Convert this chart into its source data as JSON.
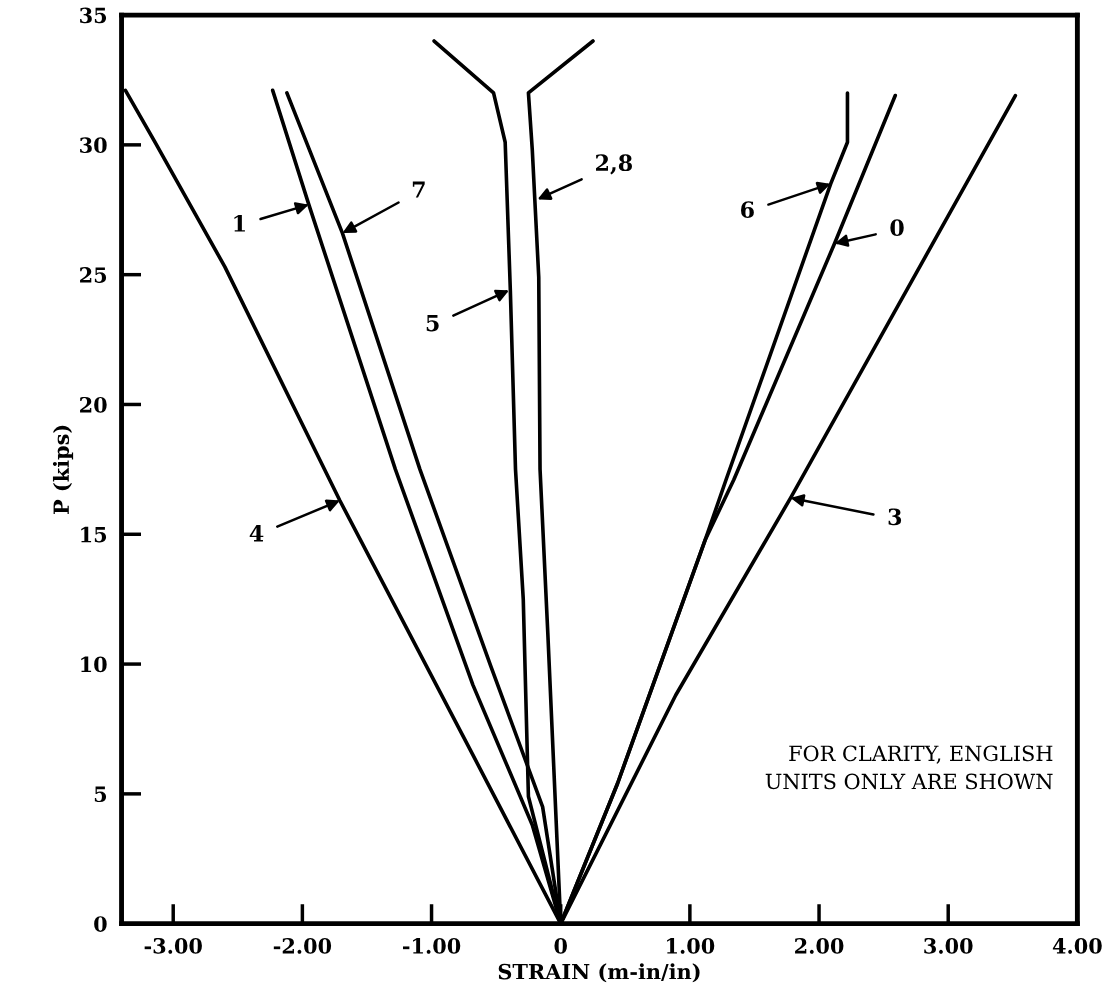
{
  "chart_data": {
    "type": "line",
    "xlabel": "STRAIN (m-in/in)",
    "ylabel": "P (kips)",
    "xlim": [
      -3.4,
      4.0
    ],
    "ylim": [
      0,
      35
    ],
    "xticks": [
      {
        "value": -3,
        "label": "-3.00"
      },
      {
        "value": -2,
        "label": "-2.00"
      },
      {
        "value": -1,
        "label": "-1.00"
      },
      0,
      {
        "value": 1,
        "label": "1.00"
      },
      {
        "value": 2,
        "label": "2.00"
      },
      {
        "value": 3,
        "label": "3.00"
      },
      {
        "value": 4,
        "label": "4.00"
      }
    ],
    "yticks": [
      0,
      5,
      10,
      15,
      20,
      25,
      30,
      35
    ],
    "grid": false,
    "legend": false,
    "marker": "none",
    "line_style": "solid",
    "series": [
      {
        "color": "#000000",
        "x": [
          0,
          -0.68,
          -1.71,
          -2.6,
          -3.14,
          -3.37
        ],
        "values": [
          0,
          6.5,
          16.3,
          25.3,
          30.1,
          32.1
        ]
      },
      {
        "color": "#000000",
        "x": [
          0,
          -0.22,
          -0.68,
          -1.28,
          -1.95,
          -2.23
        ],
        "values": [
          0,
          3.8,
          9.2,
          17.5,
          27.7,
          32.1
        ]
      },
      {
        "color": "#000000",
        "x": [
          0,
          -0.14,
          -0.54,
          -1.09,
          -1.69,
          -2.12
        ],
        "values": [
          0,
          4.5,
          9.9,
          17.5,
          26.6,
          32.0
        ]
      },
      {
        "color": "#000000",
        "x": [
          0,
          -0.25,
          -0.29,
          -0.35,
          -0.39,
          -0.43,
          -0.52,
          -0.98
        ],
        "values": [
          0,
          4.9,
          12.5,
          17.5,
          24.4,
          30.1,
          32.0,
          34.0
        ]
      },
      {
        "color": "#000000",
        "x": [
          0,
          -0.1,
          -0.16,
          -0.17,
          -0.22,
          -0.25,
          0.25
        ],
        "values": [
          0,
          11.2,
          17.5,
          24.9,
          29.8,
          32.0,
          34.0
        ]
      },
      {
        "color": "#000000",
        "x": [
          0,
          0.44,
          1.12,
          1.28,
          2.09,
          2.22,
          2.22
        ],
        "values": [
          0,
          5.4,
          14.8,
          17.1,
          28.5,
          30.1,
          32.0
        ]
      },
      {
        "color": "#000000",
        "x": [
          0,
          0.44,
          1.12,
          1.34,
          2.12,
          2.59
        ],
        "values": [
          0,
          5.4,
          14.8,
          17.1,
          26.2,
          31.9
        ]
      },
      {
        "color": "#000000",
        "x": [
          0,
          0.89,
          1.78,
          3.52
        ],
        "values": [
          0,
          8.8,
          16.4,
          31.9
        ]
      }
    ],
    "annotations": [
      {
        "text": "1",
        "x": -1.95,
        "y": 27.7
      },
      {
        "text": "7",
        "x": -1.69,
        "y": 26.6
      },
      {
        "text": "2,8",
        "x": -0.18,
        "y": 27.9
      },
      {
        "text": "5",
        "x": -0.4,
        "y": 24.4
      },
      {
        "text": "4",
        "x": -1.71,
        "y": 16.3
      },
      {
        "text": "6",
        "x": 2.09,
        "y": 28.5
      },
      {
        "text": "0",
        "x": 2.12,
        "y": 26.2
      },
      {
        "text": "3",
        "x": 1.78,
        "y": 16.4
      },
      "FOR CLARITY, ENGLISH\nUNITS ONLY ARE SHOWN"
    ]
  }
}
